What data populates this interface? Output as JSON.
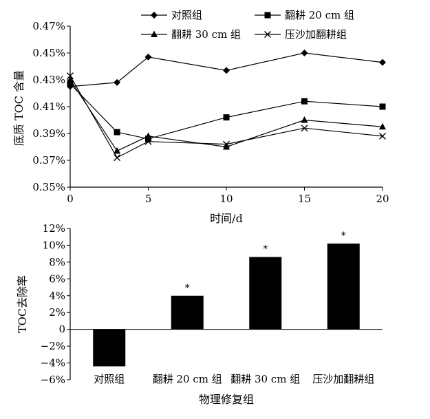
{
  "chart_data": [
    {
      "type": "line",
      "xlabel": "时间/d",
      "ylabel": "底质 TOC 含量",
      "x_ticks": [
        "0",
        "5",
        "10",
        "15",
        "20"
      ],
      "y_ticks": [
        "0.35%",
        "0.37%",
        "0.39%",
        "0.41%",
        "0.43%",
        "0.45%",
        "0.47%"
      ],
      "xlim": [
        0,
        20
      ],
      "ylim": [
        0.35,
        0.47
      ],
      "series": [
        {
          "name": "对照组",
          "marker": "diamond",
          "x": [
            0,
            3,
            5,
            10,
            15,
            20
          ],
          "values": [
            0.425,
            0.428,
            0.447,
            0.437,
            0.45,
            0.443
          ]
        },
        {
          "name": "翻耕 20 cm 组",
          "marker": "square",
          "x": [
            0,
            3,
            5,
            10,
            15,
            20
          ],
          "values": [
            0.427,
            0.391,
            0.386,
            0.402,
            0.414,
            0.41
          ]
        },
        {
          "name": "翻耕 30 cm 组",
          "marker": "triangle",
          "x": [
            0,
            3,
            5,
            10,
            15,
            20
          ],
          "values": [
            0.43,
            0.377,
            0.388,
            0.38,
            0.4,
            0.395
          ]
        },
        {
          "name": "压沙加翻耕组",
          "marker": "x",
          "x": [
            0,
            3,
            5,
            10,
            15,
            20
          ],
          "values": [
            0.433,
            0.372,
            0.384,
            0.382,
            0.394,
            0.388
          ]
        }
      ]
    },
    {
      "type": "bar",
      "xlabel": "物理修复组",
      "ylabel": "TOC去除率",
      "y_ticks": [
        "12%",
        "10%",
        "8%",
        "6%",
        "4%",
        "2%",
        "0",
        "−2%",
        "−4%",
        "−6%"
      ],
      "ylim": [
        -6,
        12
      ],
      "categories": [
        "对照组",
        "翻耕 20 cm 组",
        "翻耕 30 cm 组",
        "压沙加翻耕组"
      ],
      "values": [
        -4.4,
        4.0,
        8.6,
        10.2
      ],
      "significance": [
        "",
        "*",
        "*",
        "*"
      ]
    }
  ]
}
